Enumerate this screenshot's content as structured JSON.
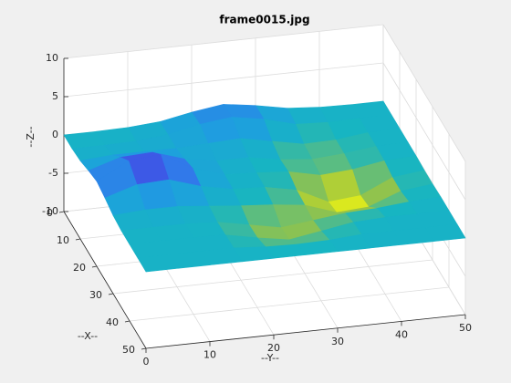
{
  "chart_data": {
    "type": "surface",
    "title": "frame0015.jpg",
    "xlabel": "--X--",
    "ylabel": "--Y--",
    "zlabel": "--Z--",
    "x": [
      0,
      5,
      10,
      15,
      20,
      25,
      30,
      35,
      40,
      45,
      50
    ],
    "y": [
      0,
      5,
      10,
      15,
      20,
      25,
      30,
      35,
      40,
      45,
      50
    ],
    "z": [
      [
        0,
        0,
        0.1,
        0.4,
        1.2,
        1.8,
        1.2,
        0.4,
        0.1,
        0,
        0
      ],
      [
        0,
        0,
        0.1,
        0.5,
        1.4,
        1.9,
        1.2,
        0.1,
        -0.1,
        0,
        0
      ],
      [
        0.2,
        0.5,
        0.5,
        0.5,
        0.7,
        0.9,
        0.1,
        -0.7,
        -0.6,
        -0.1,
        0
      ],
      [
        0.7,
        2.0,
        2.2,
        0.9,
        0.2,
        0.2,
        -0.5,
        -0.9,
        -0.6,
        -0.1,
        0
      ],
      [
        1.1,
        3.3,
        3.7,
        1.5,
        0.2,
        0,
        -0.3,
        -1.2,
        -0.9,
        -0.2,
        0
      ],
      [
        0.7,
        2.0,
        2.2,
        0.9,
        0.1,
        -0.1,
        -0.9,
        -2.9,
        -2.5,
        -0.6,
        -0.1
      ],
      [
        0.2,
        0.5,
        0.5,
        0.1,
        -0.3,
        -0.6,
        -1.1,
        -2.5,
        -2.2,
        -0.6,
        -0.1
      ],
      [
        0,
        0,
        0,
        -0.2,
        -1.0,
        -1.8,
        -1.3,
        -0.8,
        -0.6,
        -0.2,
        0
      ],
      [
        0,
        0,
        0,
        -0.1,
        -0.9,
        -1.6,
        -0.9,
        -0.2,
        0,
        0,
        0
      ],
      [
        0,
        0,
        0,
        0,
        -0.3,
        -0.4,
        -0.3,
        0,
        0,
        0,
        0
      ],
      [
        0,
        0,
        0,
        0,
        0,
        0,
        0,
        0,
        0,
        0,
        0
      ]
    ],
    "xlim": [
      0,
      50
    ],
    "xticks": [
      0,
      10,
      20,
      30,
      40,
      50
    ],
    "ylim": [
      0,
      50
    ],
    "yticks": [
      0,
      10,
      20,
      30,
      40,
      50
    ],
    "zlim": [
      -10,
      10
    ],
    "zticks": [
      -10,
      -5,
      0,
      5,
      10
    ],
    "clim": [
      -3,
      4
    ],
    "colormap": [
      "#f9fb0e",
      "#9dc441",
      "#17b5c2",
      "#1e9ee0",
      "#3d62f0",
      "#3e26a8"
    ],
    "grid": true
  }
}
